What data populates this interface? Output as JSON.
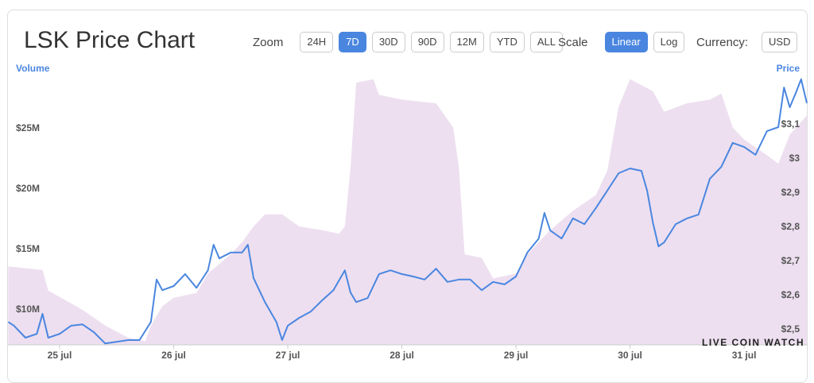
{
  "controls": {
    "zoom": {
      "label": "Zoom",
      "options": [
        "24H",
        "7D",
        "30D",
        "90D",
        "12M",
        "YTD",
        "ALL"
      ],
      "active": "7D"
    },
    "scale": {
      "label": "Scale",
      "options": [
        "Linear",
        "Log"
      ],
      "active": "Linear"
    },
    "currency": {
      "label": "Currency:",
      "value": "USD"
    }
  },
  "watermark": "LIVE COIN WATCH",
  "chart_data": {
    "type": "line",
    "title": "LSK Price Chart",
    "xlim": [
      24.547,
      31.557
    ],
    "xticks": [
      {
        "value": 25,
        "label": "25 jul"
      },
      {
        "value": 26,
        "label": "26 jul"
      },
      {
        "value": 27,
        "label": "27 jul"
      },
      {
        "value": 28,
        "label": "28 jul"
      },
      {
        "value": 29,
        "label": "29 jul"
      },
      {
        "value": 30,
        "label": "30 jul"
      },
      {
        "value": 31,
        "label": "31 jul"
      }
    ],
    "ylim": [
      7.1,
      29.4
    ],
    "yticks": [
      {
        "value": 10,
        "label": "$10M"
      },
      {
        "value": 15,
        "label": "$15M"
      },
      {
        "value": 20,
        "label": "$20M"
      },
      {
        "value": 25,
        "label": "$25M"
      }
    ],
    "y2lim": [
      2.456,
      3.244
    ],
    "y2ticks": [
      {
        "value": 2.5,
        "label": "$2,5"
      },
      {
        "value": 2.6,
        "label": "$2,6"
      },
      {
        "value": 2.7,
        "label": "$2,7"
      },
      {
        "value": 2.8,
        "label": "$2,8"
      },
      {
        "value": 2.9,
        "label": "$2,9"
      },
      {
        "value": 3,
        "label": "$3"
      },
      {
        "value": 3.1,
        "label": "$3,1"
      }
    ],
    "series": [
      {
        "name": "Volume",
        "color": "#eddff0",
        "fill": true,
        "axis": "y",
        "x": [
          24.55,
          24.85,
          24.9,
          25.2,
          25.4,
          25.6,
          25.75,
          25.8,
          25.9,
          26.0,
          26.2,
          26.3,
          26.5,
          26.6,
          26.7,
          26.8,
          26.95,
          27.1,
          27.3,
          27.45,
          27.5,
          27.55,
          27.6,
          27.75,
          27.8,
          28.0,
          28.3,
          28.45,
          28.5,
          28.55,
          28.7,
          28.8,
          29.0,
          29.1,
          29.3,
          29.5,
          29.7,
          29.8,
          29.9,
          30.0,
          30.2,
          30.3,
          30.5,
          30.7,
          30.8,
          30.9,
          31.0,
          31.2,
          31.3,
          31.4,
          31.55
        ],
        "values": [
          13.6,
          13.3,
          11.6,
          10.0,
          8.7,
          7.7,
          7.4,
          8.7,
          10.3,
          11.0,
          11.4,
          13.0,
          14.6,
          15.6,
          16.9,
          17.9,
          17.9,
          16.9,
          16.6,
          16.3,
          16.9,
          21.8,
          28.8,
          29.1,
          27.8,
          27.4,
          27.1,
          25.1,
          21.8,
          14.6,
          14.3,
          12.6,
          13.0,
          14.6,
          16.6,
          18.2,
          19.5,
          21.5,
          26.8,
          29.1,
          28.1,
          26.4,
          27.1,
          27.4,
          27.9,
          25.1,
          24.1,
          22.8,
          22.1,
          24.5,
          26.1
        ]
      },
      {
        "name": "Price",
        "color": "#4a86e0",
        "axis": "y2",
        "x": [
          24.55,
          24.6,
          24.7,
          24.8,
          24.85,
          24.9,
          25.0,
          25.1,
          25.2,
          25.3,
          25.4,
          25.5,
          25.6,
          25.7,
          25.8,
          25.85,
          25.9,
          26.0,
          26.1,
          26.2,
          26.3,
          26.35,
          26.4,
          26.5,
          26.6,
          26.65,
          26.7,
          26.8,
          26.9,
          26.95,
          27.0,
          27.1,
          27.2,
          27.3,
          27.4,
          27.5,
          27.55,
          27.6,
          27.7,
          27.8,
          27.9,
          28.0,
          28.1,
          28.2,
          28.3,
          28.4,
          28.5,
          28.6,
          28.7,
          28.8,
          28.9,
          29.0,
          29.1,
          29.2,
          29.25,
          29.3,
          29.4,
          29.5,
          29.6,
          29.7,
          29.8,
          29.9,
          30.0,
          30.1,
          30.15,
          30.2,
          30.25,
          30.3,
          30.4,
          30.5,
          30.6,
          30.7,
          30.8,
          30.9,
          31.0,
          31.1,
          31.2,
          31.3,
          31.35,
          31.4,
          31.45,
          31.5,
          31.55
        ],
        "values": [
          2.523,
          2.512,
          2.477,
          2.488,
          2.547,
          2.477,
          2.488,
          2.512,
          2.516,
          2.493,
          2.46,
          2.465,
          2.47,
          2.47,
          2.523,
          2.647,
          2.616,
          2.628,
          2.663,
          2.623,
          2.674,
          2.749,
          2.709,
          2.726,
          2.726,
          2.749,
          2.651,
          2.581,
          2.523,
          2.47,
          2.512,
          2.535,
          2.553,
          2.586,
          2.616,
          2.674,
          2.609,
          2.581,
          2.593,
          2.663,
          2.674,
          2.663,
          2.656,
          2.647,
          2.679,
          2.64,
          2.647,
          2.647,
          2.616,
          2.64,
          2.633,
          2.656,
          2.726,
          2.767,
          2.842,
          2.791,
          2.767,
          2.826,
          2.809,
          2.856,
          2.907,
          2.958,
          2.972,
          2.965,
          2.907,
          2.814,
          2.744,
          2.756,
          2.809,
          2.826,
          2.837,
          2.942,
          2.977,
          3.047,
          3.035,
          3.012,
          3.081,
          3.093,
          3.209,
          3.151,
          3.19,
          3.233,
          3.163
        ]
      }
    ]
  }
}
